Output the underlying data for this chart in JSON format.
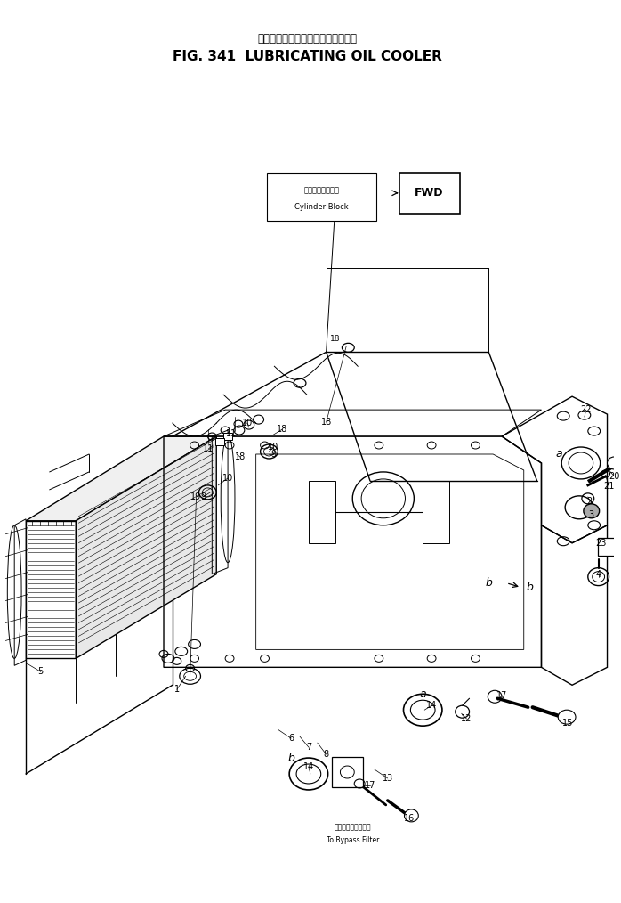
{
  "title_japanese": "ルーブリケーティングオイルクーラ",
  "title_english": "FIG. 341  LUBRICATING OIL COOLER",
  "fig_width": 6.98,
  "fig_height": 10.14,
  "bg_color": "#ffffff",
  "cylinder_block_jp": "シリンダブロック",
  "cylinder_block_en": "Cylinder Block",
  "fwd": "FWD",
  "bypass_jp": "バイパスフィルタヘ",
  "bypass_en": "To Bypass Filter"
}
